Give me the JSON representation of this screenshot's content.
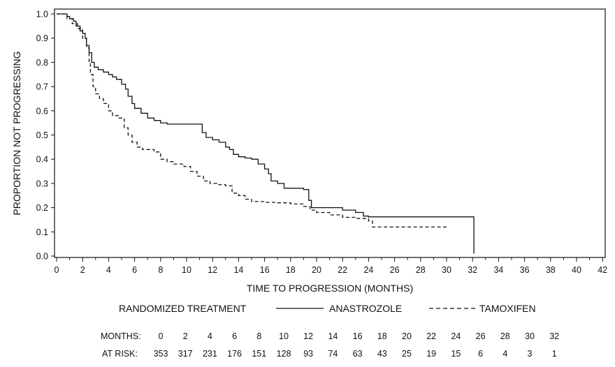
{
  "chart_data": {
    "type": "line",
    "title": "",
    "xlabel": "TIME TO PROGRESSION (MONTHS)",
    "ylabel": "PROPORTION NOT PROGRESSING",
    "xlim": [
      0,
      42
    ],
    "ylim": [
      0,
      1
    ],
    "x_ticks": [
      0,
      2,
      4,
      6,
      8,
      10,
      12,
      14,
      16,
      18,
      20,
      22,
      24,
      26,
      28,
      30,
      32,
      34,
      36,
      38,
      40,
      42
    ],
    "y_ticks": [
      "0.0",
      "0.1",
      "0.2",
      "0.3",
      "0.4",
      "0.5",
      "0.6",
      "0.7",
      "0.8",
      "0.9",
      "1.0"
    ],
    "grid": false,
    "legend": {
      "title": "RANDOMIZED TREATMENT",
      "placement": "bottom"
    },
    "series": [
      {
        "name": "ANASTROZOLE",
        "style": "solid",
        "color": "#111111",
        "points": [
          [
            0,
            1.0
          ],
          [
            0.5,
            1.0
          ],
          [
            0.8,
            0.99
          ],
          [
            1.0,
            0.98
          ],
          [
            1.3,
            0.97
          ],
          [
            1.5,
            0.95
          ],
          [
            1.8,
            0.93
          ],
          [
            2.0,
            0.92
          ],
          [
            2.2,
            0.9
          ],
          [
            2.3,
            0.87
          ],
          [
            2.5,
            0.84
          ],
          [
            2.7,
            0.8
          ],
          [
            2.9,
            0.78
          ],
          [
            3.2,
            0.77
          ],
          [
            3.6,
            0.76
          ],
          [
            4.0,
            0.75
          ],
          [
            4.3,
            0.74
          ],
          [
            4.6,
            0.73
          ],
          [
            5.0,
            0.71
          ],
          [
            5.3,
            0.69
          ],
          [
            5.5,
            0.66
          ],
          [
            5.8,
            0.63
          ],
          [
            6.0,
            0.61
          ],
          [
            6.5,
            0.59
          ],
          [
            7.0,
            0.57
          ],
          [
            7.5,
            0.56
          ],
          [
            8.0,
            0.55
          ],
          [
            8.5,
            0.545
          ],
          [
            9.0,
            0.545
          ],
          [
            10.0,
            0.545
          ],
          [
            11.0,
            0.545
          ],
          [
            11.2,
            0.51
          ],
          [
            11.5,
            0.49
          ],
          [
            12.0,
            0.48
          ],
          [
            12.5,
            0.47
          ],
          [
            13.0,
            0.45
          ],
          [
            13.3,
            0.44
          ],
          [
            13.6,
            0.42
          ],
          [
            14.0,
            0.41
          ],
          [
            14.5,
            0.405
          ],
          [
            15.0,
            0.4
          ],
          [
            15.5,
            0.38
          ],
          [
            16.0,
            0.36
          ],
          [
            16.3,
            0.34
          ],
          [
            16.5,
            0.31
          ],
          [
            17.0,
            0.3
          ],
          [
            17.5,
            0.28
          ],
          [
            18.0,
            0.28
          ],
          [
            19.0,
            0.275
          ],
          [
            19.4,
            0.23
          ],
          [
            19.6,
            0.2
          ],
          [
            20.0,
            0.2
          ],
          [
            21.0,
            0.2
          ],
          [
            22.0,
            0.19
          ],
          [
            23.0,
            0.18
          ],
          [
            23.6,
            0.165
          ],
          [
            24.0,
            0.162
          ],
          [
            26.0,
            0.162
          ],
          [
            28.0,
            0.162
          ],
          [
            30.0,
            0.162
          ],
          [
            32.1,
            0.162
          ],
          [
            32.1,
            0.01
          ]
        ]
      },
      {
        "name": "TAMOXIFEN",
        "style": "dashed",
        "color": "#111111",
        "points": [
          [
            0,
            1.0
          ],
          [
            0.5,
            1.0
          ],
          [
            0.8,
            0.98
          ],
          [
            1.2,
            0.96
          ],
          [
            1.6,
            0.94
          ],
          [
            2.0,
            0.9
          ],
          [
            2.3,
            0.86
          ],
          [
            2.5,
            0.8
          ],
          [
            2.6,
            0.75
          ],
          [
            2.8,
            0.7
          ],
          [
            3.0,
            0.67
          ],
          [
            3.3,
            0.65
          ],
          [
            3.6,
            0.63
          ],
          [
            4.0,
            0.6
          ],
          [
            4.3,
            0.58
          ],
          [
            4.8,
            0.57
          ],
          [
            5.2,
            0.53
          ],
          [
            5.5,
            0.5
          ],
          [
            5.8,
            0.47
          ],
          [
            6.2,
            0.45
          ],
          [
            6.6,
            0.44
          ],
          [
            7.5,
            0.43
          ],
          [
            8.0,
            0.4
          ],
          [
            8.5,
            0.39
          ],
          [
            9.0,
            0.38
          ],
          [
            9.8,
            0.37
          ],
          [
            10.3,
            0.35
          ],
          [
            10.8,
            0.33
          ],
          [
            11.3,
            0.31
          ],
          [
            11.8,
            0.3
          ],
          [
            12.3,
            0.295
          ],
          [
            13.0,
            0.29
          ],
          [
            13.5,
            0.26
          ],
          [
            14.0,
            0.25
          ],
          [
            14.5,
            0.235
          ],
          [
            15.0,
            0.225
          ],
          [
            16.0,
            0.222
          ],
          [
            17.0,
            0.22
          ],
          [
            18.0,
            0.215
          ],
          [
            19.0,
            0.205
          ],
          [
            19.5,
            0.19
          ],
          [
            20.0,
            0.18
          ],
          [
            21.0,
            0.17
          ],
          [
            22.0,
            0.16
          ],
          [
            23.0,
            0.155
          ],
          [
            24.0,
            0.145
          ],
          [
            24.3,
            0.12
          ],
          [
            25.0,
            0.12
          ],
          [
            26.0,
            0.12
          ],
          [
            28.0,
            0.12
          ],
          [
            30.0,
            0.12
          ]
        ]
      }
    ],
    "at_risk": {
      "months_label": "MONTHS:",
      "at_risk_label": "AT RISK:",
      "months": [
        "0",
        "2",
        "4",
        "6",
        "8",
        "10",
        "12",
        "14",
        "16",
        "18",
        "20",
        "22",
        "24",
        "26",
        "28",
        "30",
        "32"
      ],
      "counts": [
        "353",
        "317",
        "231",
        "176",
        "151",
        "128",
        "93",
        "74",
        "63",
        "43",
        "25",
        "19",
        "15",
        "6",
        "4",
        "3",
        "1"
      ]
    }
  }
}
